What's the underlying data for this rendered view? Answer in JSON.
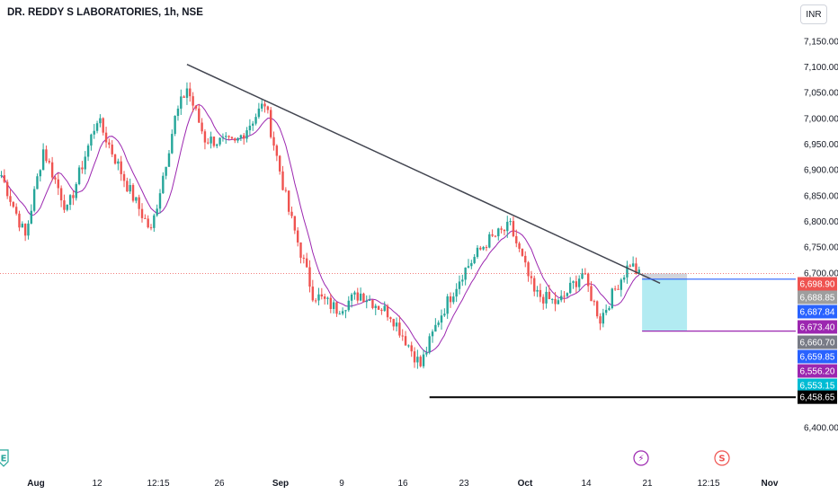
{
  "header": {
    "title": "DR. REDDY S LABORATORIES, 1h, NSE"
  },
  "currency_button": {
    "label": "INR"
  },
  "colors": {
    "up": "#26a69a",
    "down": "#ef5350",
    "trendline": "#434651",
    "ma": "#9c27b0",
    "blue_line": "#2962ff",
    "support": "#000000",
    "projection_fill": "#b2ebf2",
    "entry_fill": "#d1d4dc",
    "current_price_line": "#ef5350"
  },
  "chart_data": {
    "type": "candlestick",
    "title": "DR. REDDY S LABORATORIES, 1h, NSE",
    "currency": "INR",
    "ylim": [
      6370,
      7190
    ],
    "y_ticks": [
      "7,150.00",
      "7,100.00",
      "7,050.00",
      "7,000.00",
      "6,950.00",
      "6,900.00",
      "6,850.00",
      "6,800.00",
      "6,750.00",
      "6,700.00",
      "6,400.00"
    ],
    "x_ticks": [
      {
        "label": "Aug",
        "bold": true
      },
      {
        "label": "12",
        "bold": false
      },
      {
        "label": "12:15",
        "bold": false
      },
      {
        "label": "26",
        "bold": false
      },
      {
        "label": "Sep",
        "bold": true
      },
      {
        "label": "9",
        "bold": false
      },
      {
        "label": "16",
        "bold": false
      },
      {
        "label": "23",
        "bold": false
      },
      {
        "label": "Oct",
        "bold": true
      },
      {
        "label": "14",
        "bold": false
      },
      {
        "label": "21",
        "bold": false
      },
      {
        "label": "12:15",
        "bold": false
      },
      {
        "label": "Nov",
        "bold": true
      }
    ],
    "price_path": [
      {
        "bar": 0,
        "price": 6890
      },
      {
        "bar": 8,
        "price": 6770
      },
      {
        "bar": 14,
        "price": 6940
      },
      {
        "bar": 22,
        "price": 6820
      },
      {
        "bar": 32,
        "price": 7000
      },
      {
        "bar": 42,
        "price": 6870
      },
      {
        "bar": 50,
        "price": 6780
      },
      {
        "bar": 58,
        "price": 7000
      },
      {
        "bar": 62,
        "price": 7060
      },
      {
        "bar": 68,
        "price": 6960
      },
      {
        "bar": 78,
        "price": 6950
      },
      {
        "bar": 88,
        "price": 7030
      },
      {
        "bar": 96,
        "price": 6820
      },
      {
        "bar": 104,
        "price": 6660
      },
      {
        "bar": 112,
        "price": 6630
      },
      {
        "bar": 120,
        "price": 6660
      },
      {
        "bar": 130,
        "price": 6620
      },
      {
        "bar": 140,
        "price": 6520
      },
      {
        "bar": 146,
        "price": 6610
      },
      {
        "bar": 154,
        "price": 6700
      },
      {
        "bar": 162,
        "price": 6760
      },
      {
        "bar": 170,
        "price": 6790
      },
      {
        "bar": 178,
        "price": 6660
      },
      {
        "bar": 186,
        "price": 6640
      },
      {
        "bar": 194,
        "price": 6700
      },
      {
        "bar": 200,
        "price": 6610
      },
      {
        "bar": 206,
        "price": 6680
      },
      {
        "bar": 210,
        "price": 6720
      },
      {
        "bar": 213,
        "price": 6695
      }
    ],
    "total_bars": 214,
    "trendline": {
      "from": {
        "bar": 62,
        "price": 7105
      },
      "to": {
        "bar": 220,
        "price": 6680
      }
    },
    "support_line": {
      "from_bar": 143,
      "price": 6458.65
    },
    "current_price": 6698.9,
    "projection": {
      "from_bar": 214,
      "to_bar": 229,
      "entry_top": 6699,
      "entry_bottom": 6687.84,
      "target": 6587
    },
    "price_labels": [
      {
        "text": "6,698.90",
        "bg": "#ef5350",
        "fg": "#ffffff",
        "slot": 0
      },
      {
        "text": "6,688.85",
        "bg": "#9e9e9e",
        "fg": "#ffffff",
        "slot": 1
      },
      {
        "text": "6,687.84",
        "bg": "#2962ff",
        "fg": "#ffffff",
        "slot": 2
      },
      {
        "text": "6,673.40",
        "bg": "#9c27b0",
        "fg": "#ffffff",
        "slot": 3
      },
      {
        "text": "6,660.70",
        "bg": "#787b86",
        "fg": "#ffffff",
        "slot": 4
      },
      {
        "text": "6,659.85",
        "bg": "#2962ff",
        "fg": "#ffffff",
        "slot": 5
      },
      {
        "text": "6,556.20",
        "bg": "#9c27b0",
        "fg": "#ffffff",
        "slot": 6
      },
      {
        "text": "6,553.15",
        "bg": "#00bcd4",
        "fg": "#ffffff",
        "slot": 7
      },
      {
        "text": "6,458.65",
        "bg": "#000000",
        "fg": "#ffffff",
        "slot": 8
      }
    ],
    "event_markers": [
      {
        "icon": "lightning-icon",
        "glyph": "⚡",
        "color": "#9c27b0"
      },
      {
        "icon": "dividend-icon",
        "glyph": "S",
        "color": "#ef5350"
      },
      {
        "icon": "earnings-icon",
        "glyph": "E",
        "color": "#26a69a"
      }
    ]
  }
}
